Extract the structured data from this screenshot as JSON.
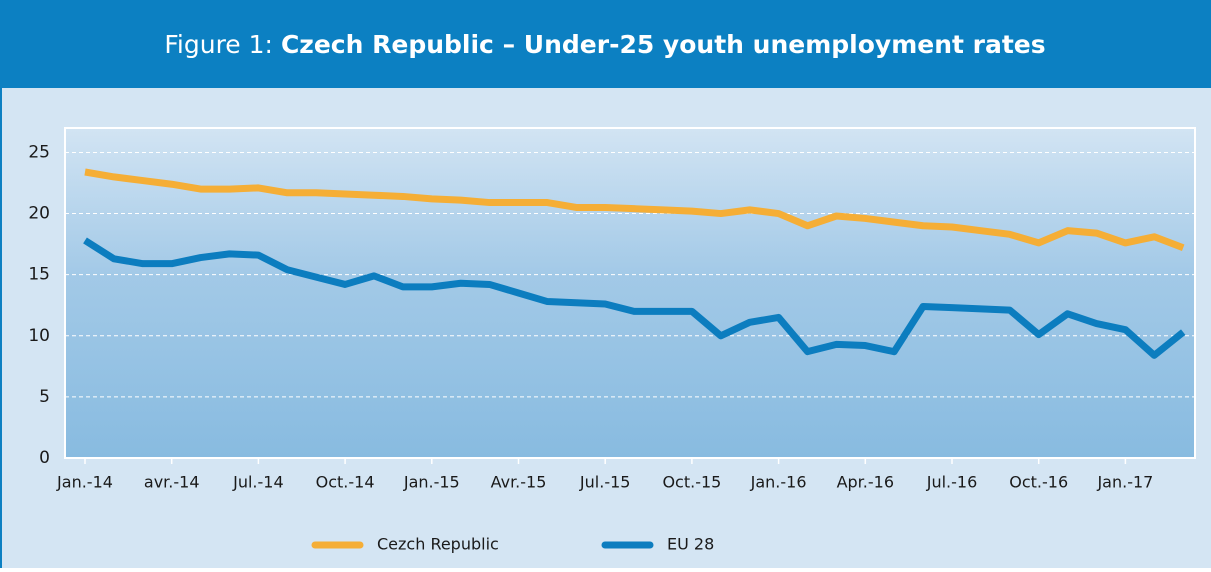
{
  "chart_data": {
    "type": "line",
    "title_prefix": "Figure 1:",
    "title": "Czech Republic – Under-25 youth unemployment rates",
    "categories": [
      "Jan.-14",
      null,
      null,
      "avr.-14",
      null,
      null,
      "Jul.-14",
      null,
      null,
      "Oct.-14",
      null,
      null,
      "Jan.-15",
      null,
      null,
      "Avr.-15",
      null,
      null,
      "Jul.-15",
      null,
      null,
      "Oct.-15",
      null,
      null,
      "Jan.-16",
      null,
      null,
      "Apr.-16",
      null,
      null,
      "Jul.-16",
      null,
      null,
      "Oct.-16",
      null,
      null,
      "Jan.-17",
      null,
      null
    ],
    "series": [
      {
        "name": "Cezch Republic",
        "color": "#f5ae36",
        "values": [
          23.4,
          23.0,
          22.7,
          22.4,
          22.0,
          22.0,
          22.1,
          21.7,
          21.7,
          21.6,
          21.5,
          21.4,
          21.2,
          21.1,
          20.9,
          20.9,
          20.9,
          20.5,
          20.5,
          20.4,
          20.3,
          20.2,
          20.0,
          20.3,
          20.0,
          19.0,
          19.8,
          19.6,
          19.3,
          19.0,
          18.9,
          18.6,
          18.3,
          17.6,
          18.6,
          18.4,
          17.6,
          18.1,
          17.2
        ]
      },
      {
        "name": "EU 28",
        "color": "#0c7dbf",
        "values": [
          17.8,
          16.3,
          15.9,
          15.9,
          16.4,
          16.7,
          16.6,
          15.4,
          14.8,
          14.2,
          14.9,
          14.0,
          14.0,
          14.3,
          14.2,
          13.5,
          12.8,
          12.7,
          12.6,
          12.0,
          12.0,
          12.0,
          10.0,
          11.1,
          11.5,
          8.7,
          9.3,
          9.2,
          8.7,
          12.4,
          12.3,
          12.2,
          12.1,
          10.1,
          11.8,
          11.0,
          10.5,
          8.4,
          10.3
        ]
      }
    ],
    "ylim": [
      0,
      27
    ],
    "yticks": [
      0,
      5,
      10,
      15,
      20,
      25
    ],
    "grid": true,
    "legend": "bottom"
  }
}
